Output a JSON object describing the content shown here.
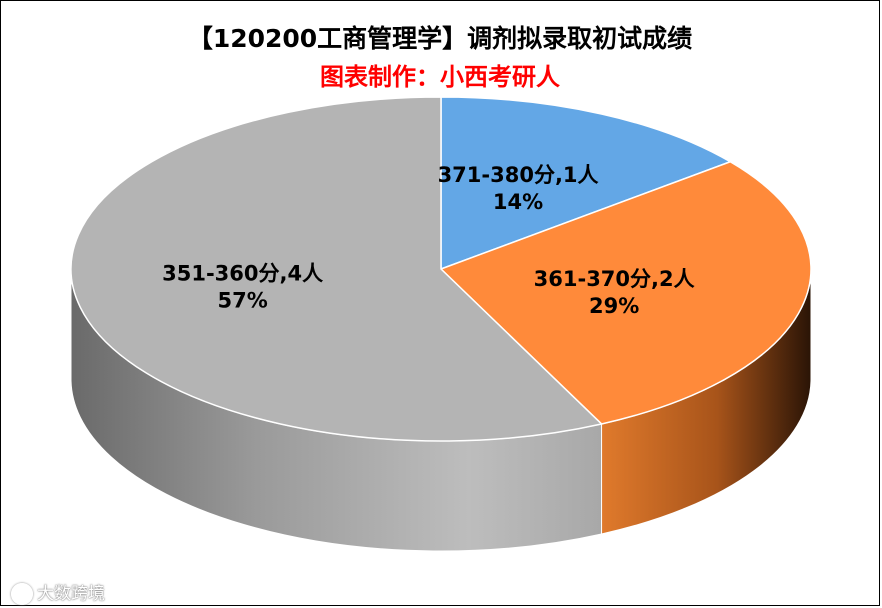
{
  "chart_data": {
    "type": "pie",
    "title": "【120200工商管理学】调剂拟录取初试成绩",
    "subtitle": "图表制作：小西考研人",
    "slices": [
      {
        "category": "371-380分",
        "count_label": "1人",
        "count": 1,
        "percent": 14,
        "percent_label": "14%",
        "color": "#63A7E6"
      },
      {
        "category": "361-370分",
        "count_label": "2人",
        "count": 2,
        "percent": 29,
        "percent_label": "29%",
        "color": "#FF8A3A"
      },
      {
        "category": "351-360分",
        "count_label": "4人",
        "count": 4,
        "percent": 57,
        "percent_label": "57%",
        "color": "#B4B4B4"
      }
    ]
  },
  "watermark": {
    "text": "大数跨境"
  },
  "colors": {
    "title": "#000000",
    "subtitle": "#FF0000"
  }
}
